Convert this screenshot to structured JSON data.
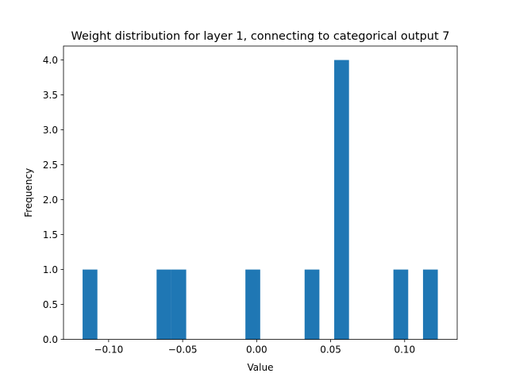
{
  "chart_data": {
    "type": "bar",
    "title": "Weight distribution for layer 1, connecting to categorical output 7",
    "xlabel": "Value",
    "ylabel": "Frequency",
    "xlim": [
      -0.1305,
      0.1355
    ],
    "ylim": [
      0,
      4.2
    ],
    "grid": false,
    "bar_color": "#1f77b4",
    "bin_width": 0.01,
    "bars": [
      {
        "x0": -0.1176,
        "x1": -0.1076,
        "count": 1
      },
      {
        "x0": -0.0676,
        "x1": -0.0576,
        "count": 1
      },
      {
        "x0": -0.0576,
        "x1": -0.0476,
        "count": 1
      },
      {
        "x0": -0.0076,
        "x1": 0.0024,
        "count": 1
      },
      {
        "x0": 0.0324,
        "x1": 0.0424,
        "count": 1
      },
      {
        "x0": 0.0524,
        "x1": 0.0624,
        "count": 4
      },
      {
        "x0": 0.0924,
        "x1": 0.1024,
        "count": 1
      },
      {
        "x0": 0.1124,
        "x1": 0.1224,
        "count": 1
      }
    ],
    "x_ticks": [
      {
        "value": -0.1,
        "label": "−0.10"
      },
      {
        "value": -0.05,
        "label": "−0.05"
      },
      {
        "value": 0.0,
        "label": "0.00"
      },
      {
        "value": 0.05,
        "label": "0.05"
      },
      {
        "value": 0.1,
        "label": "0.10"
      }
    ],
    "y_ticks": [
      {
        "value": 0.0,
        "label": "0.0"
      },
      {
        "value": 0.5,
        "label": "0.5"
      },
      {
        "value": 1.0,
        "label": "1.0"
      },
      {
        "value": 1.5,
        "label": "1.5"
      },
      {
        "value": 2.0,
        "label": "2.0"
      },
      {
        "value": 2.5,
        "label": "2.5"
      },
      {
        "value": 3.0,
        "label": "3.0"
      },
      {
        "value": 3.5,
        "label": "3.5"
      },
      {
        "value": 4.0,
        "label": "4.0"
      }
    ]
  }
}
